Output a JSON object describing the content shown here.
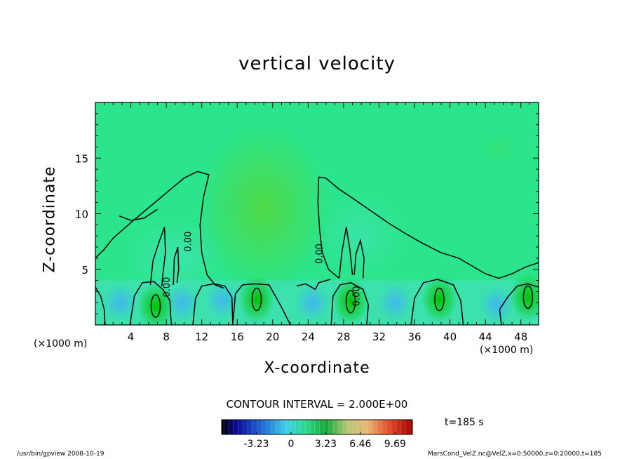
{
  "chart_data": {
    "type": "heatmap",
    "title": "vertical velocity",
    "xlabel": "X-coordinate",
    "ylabel": "Z-coordinate",
    "x_unit_label": "(×1000 m)",
    "x_ticks": [
      4,
      8,
      12,
      16,
      20,
      24,
      28,
      32,
      36,
      40,
      44,
      48
    ],
    "y_ticks": [
      5,
      10,
      15
    ],
    "xlim": [
      0,
      50
    ],
    "ylim": [
      0,
      20
    ],
    "contour_interval_text": "CONTOUR INTERVAL = 2.000E+00",
    "contour_labels": [
      {
        "text": "0.00",
        "x": 10.8,
        "z": 7.5
      },
      {
        "text": "0.00",
        "x": 8.4,
        "z": 3.4
      },
      {
        "text": "0.00",
        "x": 25.6,
        "z": 6.4
      },
      {
        "text": "0.00",
        "x": 29.8,
        "z": 2.6
      }
    ],
    "colorbar": {
      "ticks": [
        "-3.23",
        "0",
        "3.23",
        "6.46",
        "9.69"
      ],
      "tick_values": [
        -3.23,
        0,
        3.23,
        6.46,
        9.69
      ],
      "range": [
        -6.46,
        11.3
      ]
    },
    "time_label": "t=185 s",
    "features": {
      "updraft_cores": [
        {
          "x": 6.8,
          "z": 1.7
        },
        {
          "x": 18.2,
          "z": 2.3
        },
        {
          "x": 28.8,
          "z": 2.1
        },
        {
          "x": 38.8,
          "z": 2.3
        },
        {
          "x": 48.8,
          "z": 2.5
        }
      ],
      "downdraft_cores": [
        {
          "x": 2.8,
          "z": 2.0
        },
        {
          "x": 9.8,
          "z": 2.0
        },
        {
          "x": 14.3,
          "z": 2.2
        },
        {
          "x": 24.5,
          "z": 2.0
        },
        {
          "x": 33.8,
          "z": 2.0
        },
        {
          "x": 45.3,
          "z": 1.8
        }
      ]
    }
  },
  "footer": {
    "left": "/usr/bin/gpview   2008-10-19",
    "right": "MarsCond_VelZ.nc@VelZ,x=0:50000,z=0:20000,t=185"
  },
  "colors": {
    "background_field": "#2be58c",
    "updraft": "#00c400",
    "downdraft": "#3fb6f0"
  }
}
